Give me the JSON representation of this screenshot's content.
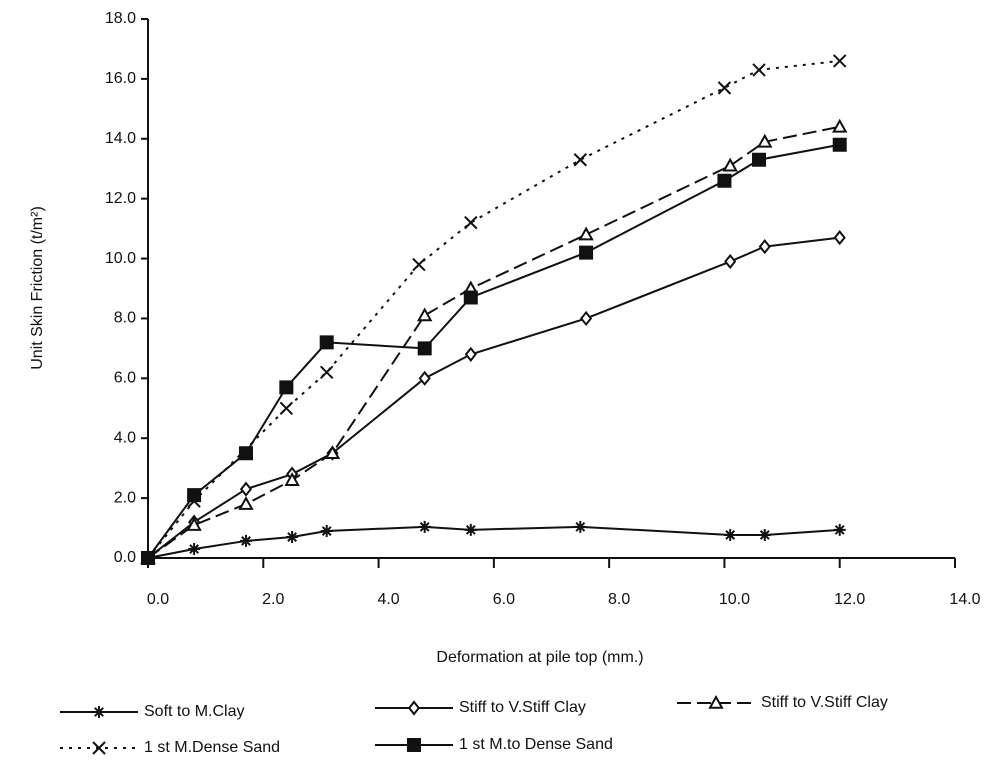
{
  "chart_data": {
    "type": "line",
    "x_label": "Deformation at pile top (mm.)",
    "y_label": "Unit Skin Friction (t/m²)",
    "xlim": [
      0,
      14
    ],
    "ylim": [
      0,
      18
    ],
    "xticks": [
      {
        "value": 0,
        "label": "0.0"
      },
      {
        "value": 2,
        "label": "2.0"
      },
      {
        "value": 4,
        "label": "4.0"
      },
      {
        "value": 6,
        "label": "6.0"
      },
      {
        "value": 8,
        "label": "8.0"
      },
      {
        "value": 10,
        "label": "10.0"
      },
      {
        "value": 12,
        "label": "12.0"
      },
      {
        "value": 14,
        "label": "14.0"
      }
    ],
    "yticks": [
      {
        "value": 0,
        "label": "0.0"
      },
      {
        "value": 2,
        "label": "2.0"
      },
      {
        "value": 4,
        "label": "4.0"
      },
      {
        "value": 6,
        "label": "6.0"
      },
      {
        "value": 8,
        "label": "8.0"
      },
      {
        "value": 10,
        "label": "10.0"
      },
      {
        "value": 12,
        "label": "12.0"
      },
      {
        "value": 14,
        "label": "14.0"
      },
      {
        "value": 16,
        "label": "16.0"
      },
      {
        "value": 18,
        "label": "18.0"
      }
    ],
    "grid": false,
    "series": [
      {
        "name": "Soft to M.Clay",
        "color": "#111111",
        "marker": "asterisk",
        "dash": "solid",
        "x": [
          0,
          0.8,
          1.7,
          2.5,
          3.1,
          4.8,
          5.6,
          7.5,
          10.1,
          10.7,
          12.0
        ],
        "values": [
          0,
          0.3,
          0.57,
          0.7,
          0.9,
          1.04,
          0.94,
          1.04,
          0.77,
          0.77,
          0.94
        ]
      },
      {
        "name": "Stiff to V.Stiff Clay",
        "color": "#111111",
        "marker": "diamond",
        "dash": "solid",
        "x": [
          0,
          0.8,
          1.7,
          2.5,
          3.2,
          4.8,
          5.6,
          7.6,
          10.1,
          10.7,
          12.0
        ],
        "values": [
          0,
          1.2,
          2.3,
          2.8,
          3.5,
          6.0,
          6.8,
          8.0,
          9.9,
          10.4,
          10.7
        ]
      },
      {
        "name": "Stiff to V.Stiff Clay",
        "color": "#111111",
        "marker": "triangle",
        "dash": "dashed",
        "x": [
          0,
          0.8,
          1.7,
          2.5,
          3.2,
          4.8,
          5.6,
          7.6,
          10.1,
          10.7,
          12.0
        ],
        "values": [
          0,
          1.1,
          1.8,
          2.6,
          3.5,
          8.1,
          9.0,
          10.8,
          13.1,
          13.9,
          14.4
        ]
      },
      {
        "name": "1 st M.Dense Sand",
        "color": "#111111",
        "marker": "x",
        "dash": "dotted",
        "x": [
          0,
          0.8,
          2.4,
          3.1,
          4.7,
          5.6,
          7.5,
          10.0,
          10.6,
          12.0
        ],
        "values": [
          0,
          1.9,
          5.0,
          6.2,
          9.8,
          11.2,
          13.3,
          15.7,
          16.3,
          16.6
        ]
      },
      {
        "name": "1 st M.to Dense Sand",
        "color": "#111111",
        "marker": "square",
        "dash": "solid",
        "x": [
          0,
          0.8,
          1.7,
          2.4,
          3.1,
          4.8,
          5.6,
          7.6,
          10.0,
          10.6,
          12.0
        ],
        "values": [
          0,
          2.1,
          3.5,
          5.7,
          7.2,
          7.0,
          8.7,
          10.2,
          12.6,
          13.3,
          13.8
        ]
      }
    ]
  }
}
